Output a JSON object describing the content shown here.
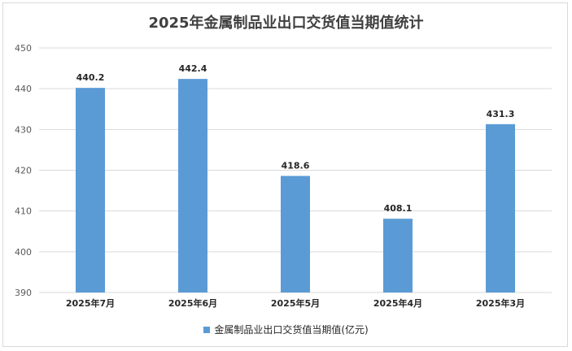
{
  "chart_data": {
    "type": "bar",
    "title": "2025年金属制品业出口交货值当期值统计",
    "categories": [
      "2025年7月",
      "2025年6月",
      "2025年5月",
      "2025年4月",
      "2025年3月"
    ],
    "series": [
      {
        "name": "金属制品业出口交货值当期值(亿元)",
        "values": [
          440.2,
          442.4,
          418.6,
          408.1,
          431.3
        ]
      }
    ],
    "ylim": [
      390,
      450
    ],
    "yticks": [
      390,
      400,
      410,
      420,
      430,
      440,
      450
    ],
    "grid": true,
    "legend_position": "bottom",
    "colors": {
      "bar": "#5b9bd5",
      "grid": "#d9d9d9"
    }
  }
}
